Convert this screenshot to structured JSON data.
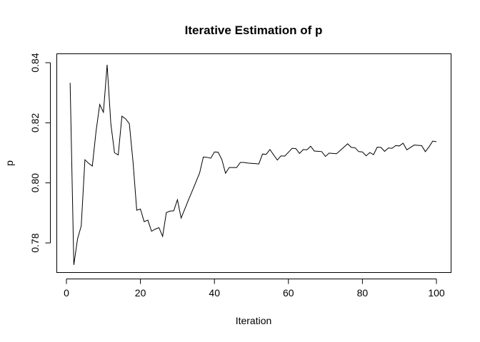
{
  "chart_data": {
    "type": "line",
    "title": "Iterative Estimation of p",
    "xlabel": "Iteration",
    "ylabel": "p",
    "xlim": [
      0,
      100
    ],
    "ylim": [
      0.77,
      0.84
    ],
    "x_ticks": [
      0,
      20,
      40,
      60,
      80,
      100
    ],
    "x_tick_labels": [
      "0",
      "20",
      "40",
      "60",
      "80",
      "100"
    ],
    "y_ticks": [
      0.78,
      0.8,
      0.82,
      0.84
    ],
    "y_tick_labels": [
      "0.78",
      "0.80",
      "0.82",
      "0.84"
    ],
    "grid": false,
    "legend": "none",
    "series": [
      {
        "color": "#000000",
        "x": [
          1,
          2,
          3,
          4,
          5,
          6,
          7,
          8,
          9,
          10,
          11,
          12,
          13,
          14,
          15,
          16,
          17,
          18,
          19,
          20,
          21,
          22,
          23,
          24,
          25,
          26,
          27,
          28,
          29,
          30,
          31,
          32,
          33,
          34,
          35,
          36,
          37,
          38,
          39,
          40,
          41,
          42,
          43,
          44,
          45,
          46,
          47,
          48,
          49,
          50,
          51,
          52,
          53,
          54,
          55,
          56,
          57,
          58,
          59,
          60,
          61,
          62,
          63,
          64,
          65,
          66,
          67,
          68,
          69,
          70,
          71,
          72,
          73,
          74,
          75,
          76,
          77,
          78,
          79,
          80,
          81,
          82,
          83,
          84,
          85,
          86,
          87,
          88,
          89,
          90,
          91,
          92,
          93,
          94,
          95,
          96,
          97,
          98,
          99,
          100
        ],
        "values": [
          0.8333,
          0.7727,
          0.7813,
          0.7857,
          0.8077,
          0.8065,
          0.8056,
          0.8171,
          0.8261,
          0.8235,
          0.8393,
          0.8197,
          0.81,
          0.8093,
          0.8222,
          0.8213,
          0.8197,
          0.807,
          0.7909,
          0.7913,
          0.7871,
          0.7876,
          0.7839,
          0.7846,
          0.7851,
          0.7822,
          0.7901,
          0.7906,
          0.7907,
          0.7944,
          0.7883,
          0.7913,
          0.7944,
          0.7973,
          0.8003,
          0.8033,
          0.8086,
          0.8085,
          0.8082,
          0.8103,
          0.8102,
          0.8078,
          0.8032,
          0.8051,
          0.8051,
          0.8051,
          0.8068,
          0.8068,
          0.8066,
          0.8065,
          0.8064,
          0.8063,
          0.8096,
          0.8095,
          0.8111,
          0.8093,
          0.8076,
          0.809,
          0.8089,
          0.8102,
          0.8115,
          0.8114,
          0.8098,
          0.8111,
          0.811,
          0.8122,
          0.8106,
          0.8105,
          0.8104,
          0.8088,
          0.8099,
          0.8098,
          0.8097,
          0.8108,
          0.8119,
          0.813,
          0.8118,
          0.8117,
          0.8104,
          0.8103,
          0.809,
          0.8101,
          0.8094,
          0.8119,
          0.8118,
          0.8105,
          0.8116,
          0.8115,
          0.8124,
          0.8123,
          0.8132,
          0.811,
          0.8118,
          0.8126,
          0.8125,
          0.8124,
          0.8104,
          0.812,
          0.8139,
          0.8137
        ]
      }
    ]
  }
}
